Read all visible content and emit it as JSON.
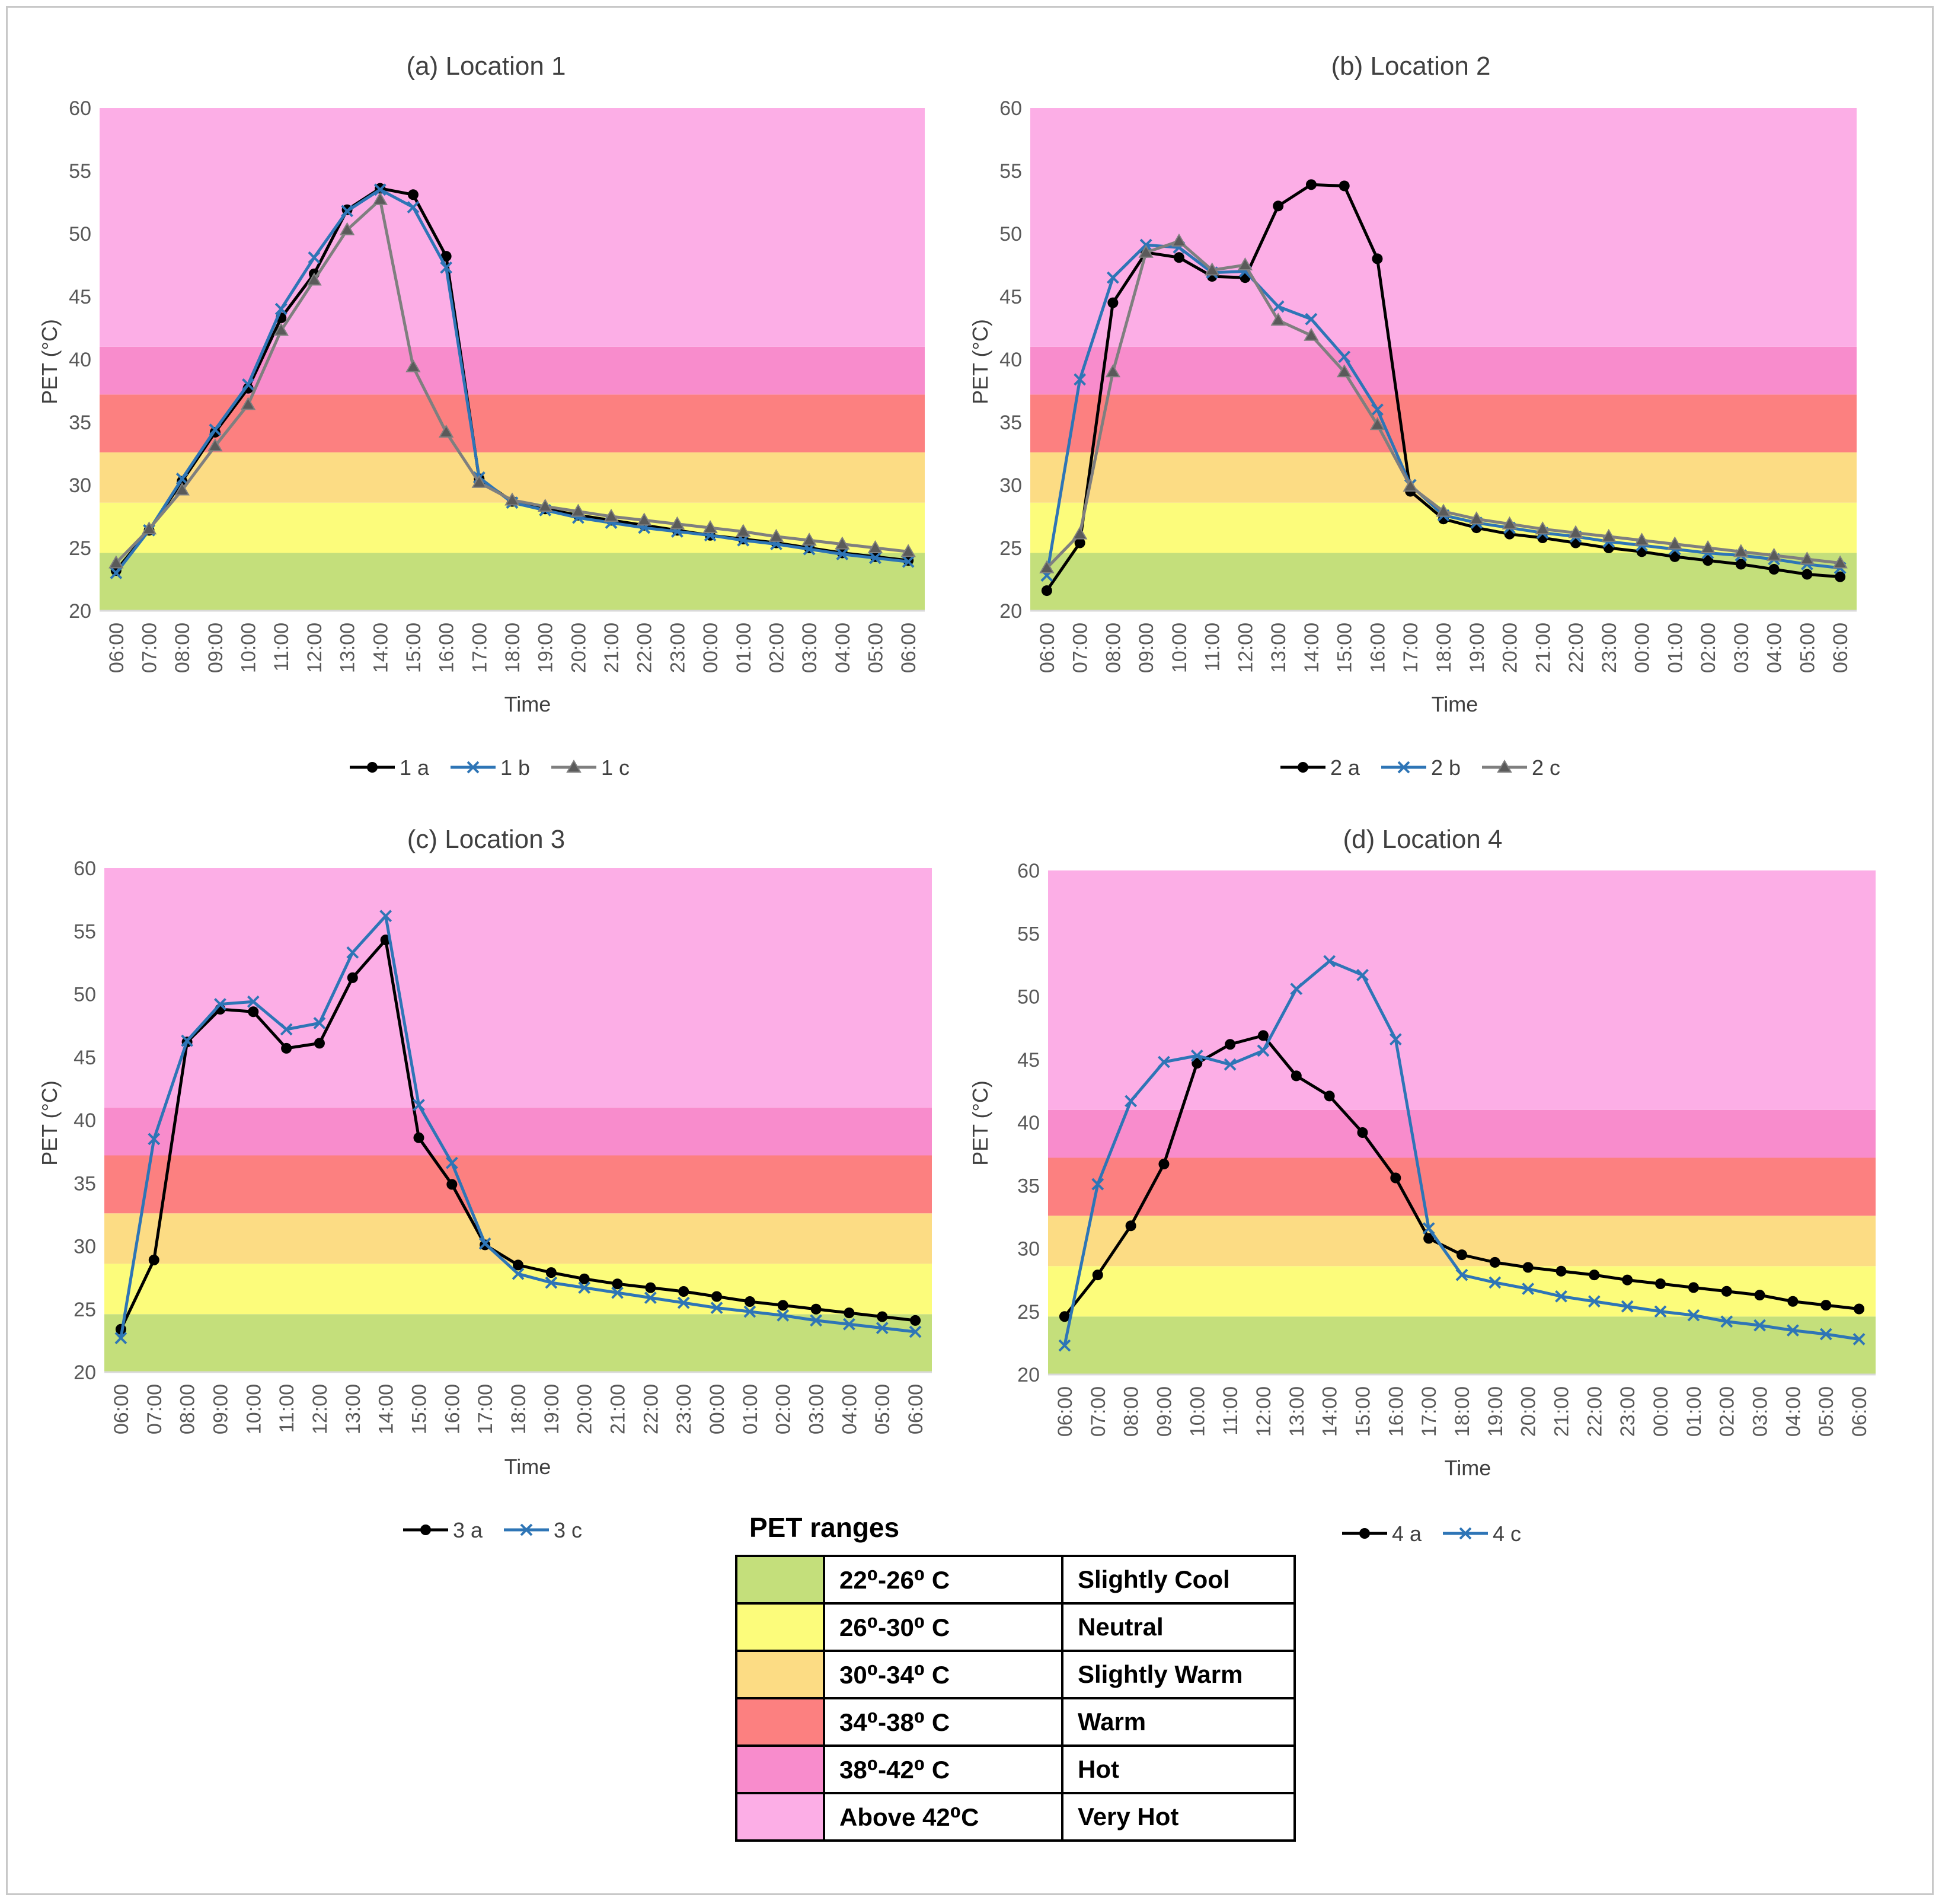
{
  "time_labels": [
    "06:00",
    "07:00",
    "08:00",
    "09:00",
    "10:00",
    "11:00",
    "12:00",
    "13:00",
    "14:00",
    "15:00",
    "16:00",
    "17:00",
    "18:00",
    "19:00",
    "20:00",
    "21:00",
    "22:00",
    "23:00",
    "00:00",
    "01:00",
    "02:00",
    "03:00",
    "04:00",
    "05:00",
    "06:00"
  ],
  "chart_data": [
    {
      "type": "line",
      "title": "(a) Location 1",
      "xlabel": "Time",
      "ylabel": "PET (°C)",
      "ylim": [
        20,
        60
      ],
      "yticks": [
        20,
        25,
        30,
        35,
        40,
        45,
        50,
        55,
        60
      ],
      "series": [
        {
          "name": "1 a",
          "marker": "circle",
          "color": "#000000",
          "values": [
            23.2,
            26.4,
            30.3,
            34.2,
            37.7,
            43.3,
            46.8,
            51.9,
            53.6,
            53.1,
            48.2,
            30.5,
            28.7,
            28.1,
            27.6,
            27.2,
            26.8,
            26.4,
            26.0,
            25.7,
            25.4,
            25.0,
            24.6,
            24.3,
            24.0
          ]
        },
        {
          "name": "1 b",
          "marker": "x",
          "color": "#2e75b6",
          "values": [
            23.0,
            26.4,
            30.5,
            34.4,
            38.0,
            44.0,
            48.1,
            51.8,
            53.5,
            52.1,
            47.3,
            30.6,
            28.6,
            28.0,
            27.4,
            27.0,
            26.6,
            26.3,
            26.0,
            25.6,
            25.3,
            24.9,
            24.5,
            24.2,
            23.9
          ]
        },
        {
          "name": "1 c",
          "marker": "triangle",
          "color": "#7f7f7f",
          "values": [
            23.8,
            26.5,
            29.6,
            33.1,
            36.4,
            42.3,
            46.3,
            50.3,
            52.7,
            39.4,
            34.2,
            30.2,
            28.8,
            28.3,
            27.9,
            27.5,
            27.2,
            26.9,
            26.6,
            26.3,
            25.9,
            25.6,
            25.3,
            25.0,
            24.7
          ]
        }
      ]
    },
    {
      "type": "line",
      "title": "(b) Location 2",
      "xlabel": "Time",
      "ylabel": "PET (°C)",
      "ylim": [
        20,
        60
      ],
      "yticks": [
        20,
        25,
        30,
        35,
        40,
        45,
        50,
        55,
        60
      ],
      "series": [
        {
          "name": "2 a",
          "marker": "circle",
          "color": "#000000",
          "values": [
            21.6,
            25.4,
            44.5,
            48.5,
            48.1,
            46.6,
            46.5,
            52.2,
            53.9,
            53.8,
            48.0,
            29.5,
            27.3,
            26.6,
            26.1,
            25.8,
            25.4,
            25.0,
            24.7,
            24.3,
            24.0,
            23.7,
            23.3,
            22.9,
            22.7
          ]
        },
        {
          "name": "2 b",
          "marker": "x",
          "color": "#2e75b6",
          "values": [
            22.8,
            38.4,
            46.5,
            49.1,
            48.9,
            46.9,
            47.0,
            44.2,
            43.2,
            40.2,
            36.0,
            30.0,
            27.6,
            27.0,
            26.6,
            26.2,
            25.9,
            25.5,
            25.2,
            24.9,
            24.6,
            24.4,
            24.1,
            23.7,
            23.4
          ]
        },
        {
          "name": "2 c",
          "marker": "triangle",
          "color": "#7f7f7f",
          "values": [
            23.4,
            26.1,
            39.0,
            48.5,
            49.4,
            47.1,
            47.5,
            43.1,
            41.9,
            39.0,
            34.8,
            29.9,
            27.9,
            27.3,
            26.9,
            26.5,
            26.2,
            25.9,
            25.6,
            25.3,
            25.0,
            24.7,
            24.4,
            24.1,
            23.8
          ]
        }
      ]
    },
    {
      "type": "line",
      "title": "(c) Location 3",
      "xlabel": "Time",
      "ylabel": "PET (°C)",
      "ylim": [
        20,
        60
      ],
      "yticks": [
        20,
        25,
        30,
        35,
        40,
        45,
        50,
        55,
        60
      ],
      "series": [
        {
          "name": "3 a",
          "marker": "circle",
          "color": "#000000",
          "values": [
            23.4,
            28.9,
            46.2,
            48.8,
            48.6,
            45.7,
            46.1,
            51.3,
            54.3,
            38.6,
            34.9,
            30.1,
            28.5,
            27.9,
            27.4,
            27.0,
            26.7,
            26.4,
            26.0,
            25.6,
            25.3,
            25.0,
            24.7,
            24.4,
            24.1
          ]
        },
        {
          "name": "3 c",
          "marker": "x",
          "color": "#2e75b6",
          "values": [
            22.7,
            38.5,
            46.3,
            49.2,
            49.4,
            47.2,
            47.7,
            53.3,
            56.2,
            41.2,
            36.6,
            30.2,
            27.8,
            27.1,
            26.7,
            26.3,
            25.9,
            25.5,
            25.1,
            24.8,
            24.5,
            24.1,
            23.8,
            23.5,
            23.2
          ]
        }
      ]
    },
    {
      "type": "line",
      "title": "(d) Location 4",
      "xlabel": "Time",
      "ylabel": "PET (°C)",
      "ylim": [
        20,
        60
      ],
      "yticks": [
        20,
        25,
        30,
        35,
        40,
        45,
        50,
        55,
        60
      ],
      "series": [
        {
          "name": "4 a",
          "marker": "circle",
          "color": "#000000",
          "values": [
            24.6,
            27.9,
            31.8,
            36.7,
            44.7,
            46.2,
            46.9,
            43.7,
            42.1,
            39.2,
            35.6,
            30.8,
            29.5,
            28.9,
            28.5,
            28.2,
            27.9,
            27.5,
            27.2,
            26.9,
            26.6,
            26.3,
            25.8,
            25.5,
            25.2
          ]
        },
        {
          "name": "4 c",
          "marker": "x",
          "color": "#2e75b6",
          "values": [
            22.3,
            35.1,
            41.7,
            44.8,
            45.3,
            44.6,
            45.7,
            50.6,
            52.8,
            51.7,
            46.6,
            31.6,
            27.9,
            27.3,
            26.8,
            26.2,
            25.8,
            25.4,
            25.0,
            24.7,
            24.2,
            23.9,
            23.5,
            23.2,
            22.8
          ]
        }
      ]
    }
  ],
  "pet_ranges": {
    "title": "PET  ranges",
    "rows": [
      {
        "range": "22⁰-26⁰ C",
        "label": "Slightly Cool",
        "color": "#c4df7b"
      },
      {
        "range": "26⁰-30⁰ C",
        "label": "Neutral",
        "color": "#fcfc7b"
      },
      {
        "range": "30⁰-34⁰ C",
        "label": "Slightly Warm",
        "color": "#fcdc84"
      },
      {
        "range": "34⁰-38⁰ C",
        "label": "Warm",
        "color": "#fc8080"
      },
      {
        "range": "38⁰-42⁰ C",
        "label": "Hot",
        "color": "#f88ccc"
      },
      {
        "range": "Above 42⁰C",
        "label": "Very Hot",
        "color": "#fcaee6"
      }
    ]
  },
  "band_boundaries": [
    20,
    24.6,
    28.6,
    32.6,
    37.2,
    41.0,
    60
  ]
}
